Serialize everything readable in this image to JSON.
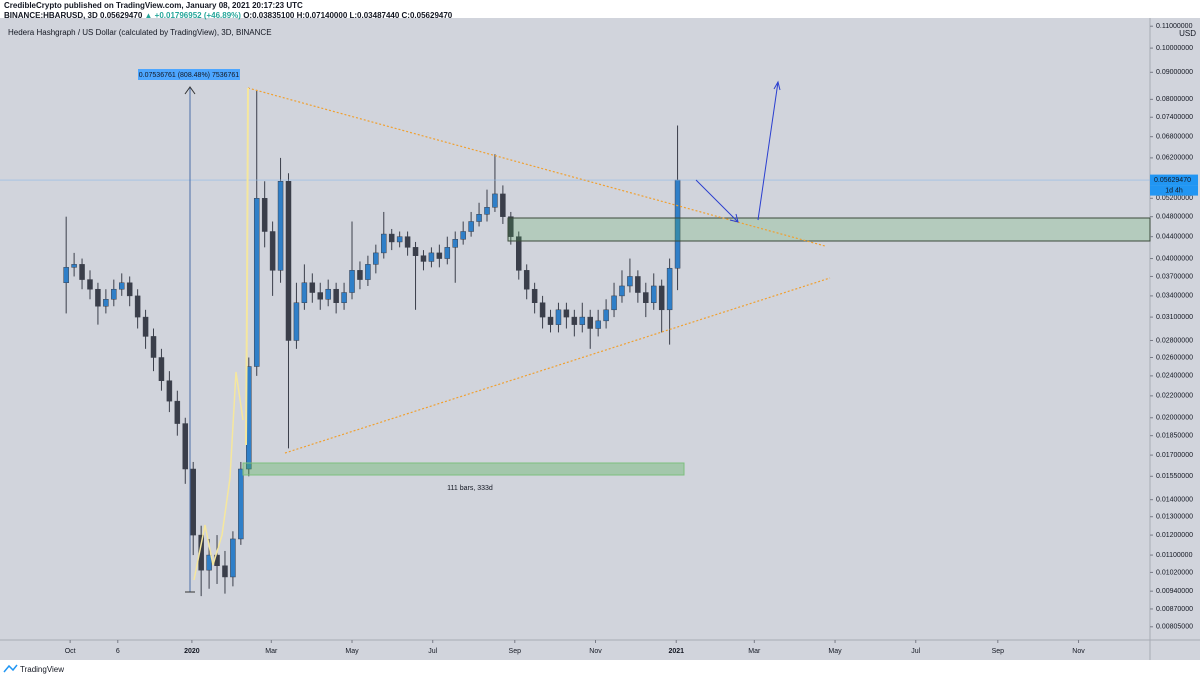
{
  "header": {
    "line1": "CredibleCrypto published on TradingView.com, January 08, 2021 20:17:23 UTC",
    "symbol": "BINANCE:HBARUSD, 3D",
    "last": "0.05629470",
    "change": "▲ +0.01796952 (+46.89%)",
    "ohlc": "O:0.03835100 H:0.07140000 L:0.03487440 C:0.05629470"
  },
  "footer": {
    "brand": "TradingView"
  },
  "chart_data": {
    "type": "candlestick",
    "title": "Hedera Hashgraph / US Dollar (calculated by TradingView), 3D, BINANCE",
    "y_axis_unit": "USD",
    "last_price_label": "0.05629470",
    "countdown_label": "1d 4h",
    "annotations": {
      "measure": "0.07536761 (808.48%) 7536761",
      "range": "111 bars, 333d"
    },
    "log_scale": true,
    "grid": false,
    "up_color": "#2f7fc8",
    "down_color": "#3a3e4a",
    "xlim": [
      -53,
      816
    ],
    "ylim": [
      0.0076,
      0.114
    ],
    "xticks": [
      {
        "value": 0,
        "label": "Oct"
      },
      {
        "value": 36,
        "label": "6"
      },
      {
        "value": 92,
        "label": "2020"
      },
      {
        "value": 152,
        "label": "Mar"
      },
      {
        "value": 213,
        "label": "May"
      },
      {
        "value": 274,
        "label": "Jul"
      },
      {
        "value": 336,
        "label": "Sep"
      },
      {
        "value": 397,
        "label": "Nov"
      },
      {
        "value": 458,
        "label": "2021"
      },
      {
        "value": 517,
        "label": "Mar"
      },
      {
        "value": 578,
        "label": "May"
      },
      {
        "value": 639,
        "label": "Jul"
      },
      {
        "value": 701,
        "label": "Sep"
      },
      {
        "value": 762,
        "label": "Nov"
      }
    ],
    "yticks": [
      {
        "value": 0.11,
        "label": "0.11000000"
      },
      {
        "value": 0.1,
        "label": "0.10000000"
      },
      {
        "value": 0.09,
        "label": "0.09000000"
      },
      {
        "value": 0.08,
        "label": "0.08000000"
      },
      {
        "value": 0.074,
        "label": "0.07400000"
      },
      {
        "value": 0.068,
        "label": "0.06800000"
      },
      {
        "value": 0.062,
        "label": "0.06200000"
      },
      {
        "value": 0.052,
        "label": "0.05200000"
      },
      {
        "value": 0.048,
        "label": "0.04800000"
      },
      {
        "value": 0.044,
        "label": "0.04400000"
      },
      {
        "value": 0.04,
        "label": "0.04000000"
      },
      {
        "value": 0.037,
        "label": "0.03700000"
      },
      {
        "value": 0.034,
        "label": "0.03400000"
      },
      {
        "value": 0.031,
        "label": "0.03100000"
      },
      {
        "value": 0.028,
        "label": "0.02800000"
      },
      {
        "value": 0.026,
        "label": "0.02600000"
      },
      {
        "value": 0.024,
        "label": "0.02400000"
      },
      {
        "value": 0.022,
        "label": "0.02200000"
      },
      {
        "value": 0.02,
        "label": "0.02000000"
      },
      {
        "value": 0.0185,
        "label": "0.01850000"
      },
      {
        "value": 0.017,
        "label": "0.01700000"
      },
      {
        "value": 0.0155,
        "label": "0.01550000"
      },
      {
        "value": 0.014,
        "label": "0.01400000"
      },
      {
        "value": 0.013,
        "label": "0.01300000"
      },
      {
        "value": 0.012,
        "label": "0.01200000"
      },
      {
        "value": 0.011,
        "label": "0.01100000"
      },
      {
        "value": 0.0102,
        "label": "0.01020000"
      },
      {
        "value": 0.0094,
        "label": "0.00940000"
      },
      {
        "value": 0.0087,
        "label": "0.00870000"
      },
      {
        "value": 0.00805,
        "label": "0.00805000"
      }
    ],
    "x": [
      -3,
      3,
      9,
      15,
      21,
      27,
      33,
      39,
      45,
      51,
      57,
      63,
      69,
      75,
      81,
      87,
      93,
      99,
      105,
      111,
      117,
      123,
      129,
      135,
      141,
      147,
      153,
      159,
      165,
      171,
      177,
      183,
      189,
      195,
      201,
      207,
      213,
      219,
      225,
      231,
      237,
      243,
      249,
      255,
      261,
      267,
      273,
      279,
      285,
      291,
      297,
      303,
      309,
      315,
      321,
      327,
      333,
      339,
      345,
      351,
      357,
      363,
      369,
      375,
      381,
      387,
      393,
      399,
      405,
      411,
      417,
      423,
      429,
      435,
      441,
      447,
      453,
      459
    ],
    "open": [
      0.036,
      0.0385,
      0.039,
      0.0365,
      0.035,
      0.0325,
      0.0335,
      0.035,
      0.036,
      0.034,
      0.031,
      0.0285,
      0.026,
      0.0235,
      0.0215,
      0.0195,
      0.016,
      0.012,
      0.0103,
      0.011,
      0.0105,
      0.01,
      0.0118,
      0.016,
      0.025,
      0.052,
      0.045,
      0.038,
      0.056,
      0.028,
      0.033,
      0.036,
      0.0345,
      0.0335,
      0.035,
      0.033,
      0.0345,
      0.038,
      0.0365,
      0.039,
      0.041,
      0.0445,
      0.043,
      0.044,
      0.042,
      0.0405,
      0.0395,
      0.041,
      0.04,
      0.042,
      0.0435,
      0.045,
      0.047,
      0.0485,
      0.05,
      0.053,
      0.048,
      0.044,
      0.038,
      0.035,
      0.033,
      0.031,
      0.03,
      0.032,
      0.031,
      0.03,
      0.031,
      0.0295,
      0.0305,
      0.032,
      0.034,
      0.0355,
      0.037,
      0.0345,
      0.033,
      0.0355,
      0.032,
      0.03835
    ],
    "high": [
      0.048,
      0.041,
      0.04,
      0.038,
      0.036,
      0.035,
      0.0365,
      0.0375,
      0.037,
      0.035,
      0.032,
      0.0295,
      0.027,
      0.0245,
      0.0225,
      0.02,
      0.0165,
      0.0125,
      0.0118,
      0.012,
      0.0112,
      0.0122,
      0.0165,
      0.026,
      0.083,
      0.056,
      0.047,
      0.062,
      0.058,
      0.036,
      0.039,
      0.0375,
      0.036,
      0.0365,
      0.036,
      0.036,
      0.047,
      0.0395,
      0.0405,
      0.0425,
      0.049,
      0.0455,
      0.045,
      0.045,
      0.043,
      0.0415,
      0.042,
      0.0425,
      0.044,
      0.045,
      0.047,
      0.049,
      0.051,
      0.054,
      0.063,
      0.055,
      0.049,
      0.045,
      0.039,
      0.036,
      0.034,
      0.032,
      0.033,
      0.033,
      0.032,
      0.033,
      0.032,
      0.032,
      0.0335,
      0.036,
      0.038,
      0.04,
      0.038,
      0.036,
      0.0375,
      0.0365,
      0.04,
      0.0714
    ],
    "low": [
      0.0315,
      0.037,
      0.035,
      0.0335,
      0.03,
      0.0315,
      0.0325,
      0.034,
      0.0325,
      0.0295,
      0.027,
      0.0245,
      0.0225,
      0.0205,
      0.0185,
      0.015,
      0.011,
      0.0092,
      0.0095,
      0.0097,
      0.0093,
      0.0096,
      0.0115,
      0.0155,
      0.024,
      0.042,
      0.034,
      0.036,
      0.0175,
      0.027,
      0.032,
      0.033,
      0.032,
      0.0325,
      0.0315,
      0.032,
      0.0335,
      0.035,
      0.0355,
      0.0375,
      0.04,
      0.0415,
      0.042,
      0.0405,
      0.032,
      0.038,
      0.0385,
      0.0385,
      0.039,
      0.036,
      0.0425,
      0.044,
      0.046,
      0.047,
      0.049,
      0.0465,
      0.0425,
      0.0365,
      0.0335,
      0.0315,
      0.0295,
      0.029,
      0.029,
      0.0295,
      0.0285,
      0.029,
      0.027,
      0.0285,
      0.0295,
      0.031,
      0.033,
      0.0345,
      0.033,
      0.031,
      0.032,
      0.029,
      0.0275,
      0.03487
    ],
    "close": [
      0.0385,
      0.039,
      0.0365,
      0.035,
      0.0325,
      0.0335,
      0.035,
      0.036,
      0.034,
      0.031,
      0.0285,
      0.026,
      0.0235,
      0.0215,
      0.0195,
      0.016,
      0.012,
      0.0103,
      0.011,
      0.0105,
      0.01,
      0.0118,
      0.016,
      0.025,
      0.052,
      0.045,
      0.038,
      0.056,
      0.028,
      0.033,
      0.036,
      0.0345,
      0.0335,
      0.035,
      0.033,
      0.0345,
      0.038,
      0.0365,
      0.039,
      0.041,
      0.0445,
      0.043,
      0.044,
      0.042,
      0.0405,
      0.0395,
      0.041,
      0.04,
      0.042,
      0.0435,
      0.045,
      0.047,
      0.0485,
      0.05,
      0.053,
      0.048,
      0.044,
      0.038,
      0.035,
      0.033,
      0.031,
      0.03,
      0.032,
      0.031,
      0.03,
      0.031,
      0.0295,
      0.0305,
      0.032,
      0.034,
      0.0355,
      0.037,
      0.0345,
      0.033,
      0.0355,
      0.032,
      0.03835,
      0.05629
    ]
  }
}
